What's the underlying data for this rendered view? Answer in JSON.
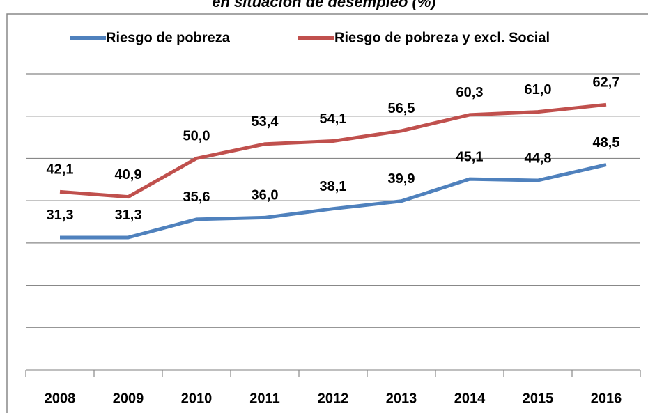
{
  "chart_data": {
    "type": "line",
    "title": "en situación de desempleo (%)",
    "categories": [
      "2008",
      "2009",
      "2010",
      "2011",
      "2012",
      "2013",
      "2014",
      "2015",
      "2016"
    ],
    "series": [
      {
        "name": "Riesgo de pobreza",
        "color": "#4f81bd",
        "values": [
          31.3,
          31.3,
          35.6,
          36.0,
          38.1,
          39.9,
          45.1,
          44.8,
          48.5
        ],
        "value_labels": [
          "31,3",
          "31,3",
          "35,6",
          "36,0",
          "38,1",
          "39,9",
          "45,1",
          "44,8",
          "48,5"
        ]
      },
      {
        "name": "Riesgo de pobreza y excl. Social",
        "color": "#c0504d",
        "values": [
          42.1,
          40.9,
          50.0,
          53.4,
          54.1,
          56.5,
          60.3,
          61.0,
          62.7
        ],
        "value_labels": [
          "42,1",
          "40,9",
          "50,0",
          "53,4",
          "54,1",
          "56,5",
          "60,3",
          "61,0",
          "62,7"
        ]
      }
    ],
    "ylim": [
      0,
      70
    ],
    "yticks": [
      0,
      10,
      20,
      30,
      40,
      50,
      60,
      70
    ],
    "grid": true,
    "legend": "top"
  }
}
